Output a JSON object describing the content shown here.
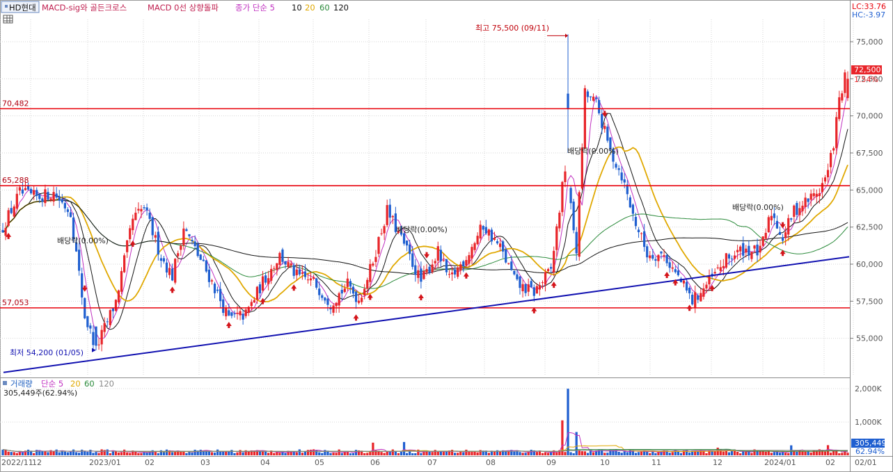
{
  "symbol": "HD현대",
  "colors": {
    "up": "#e8252a",
    "down": "#1f5fd0",
    "ma5": "#c030c0",
    "ma10": "#111111",
    "ma20": "#e0a800",
    "ma60": "#2a8a3a",
    "ma120": "#111111",
    "hline": "#e8000a",
    "trend": "#1010b0",
    "grid": "#d6d6d6"
  },
  "indicators": [
    "MACD-sig와 골든크로스",
    "MACD 0선 상향돌파"
  ],
  "ma_legend": {
    "label": "종가 단순 5",
    "periods": [
      "10",
      "20",
      "60",
      "120"
    ]
  },
  "volume_legend": {
    "label": "거래량",
    "sub": "단순 5",
    "periods": [
      "20",
      "60",
      "120"
    ]
  },
  "lc_hc": {
    "lc": "LC:33.76",
    "hc": "HC:-3.97"
  },
  "last": {
    "price": "72,500",
    "change": "1.54%",
    "volume": "305,449",
    "volume_pct": "62.94%"
  },
  "volume_readout": "305,449주(62.94%)",
  "annotations": {
    "high": "최고 75,500 (09/11)",
    "low": "최저 54,200 (01/05)",
    "dividends": [
      "배당락(0.00%)",
      "배당락(0.00%)",
      "배당락(0.00%)",
      "배당락(0.00%)"
    ]
  },
  "chart_data": {
    "type": "candlestick",
    "y_range": [
      52500,
      76500
    ],
    "price_ticks": [
      {
        "value": 55000,
        "label": "55,000"
      },
      {
        "value": 57500,
        "label": "57,500"
      },
      {
        "value": 60000,
        "label": "60,000"
      },
      {
        "value": 62500,
        "label": "62,500"
      },
      {
        "value": 65000,
        "label": "65,000"
      },
      {
        "value": 67500,
        "label": "67,500"
      },
      {
        "value": 70000,
        "label": "70,000"
      },
      {
        "value": 72500,
        "label": "72,500"
      },
      {
        "value": 75000,
        "label": "75,000"
      }
    ],
    "horizontal_lines": [
      {
        "value": 70482,
        "label": "70,482"
      },
      {
        "value": 65288,
        "label": "65,288"
      },
      {
        "value": 57053,
        "label": "57,053"
      }
    ],
    "trendline": {
      "from": 52700,
      "to": 60500
    },
    "volume_ticks": [
      {
        "value": 1000,
        "label": "1,000K"
      },
      {
        "value": 2000,
        "label": "2,000K"
      }
    ],
    "x_labels": [
      "2022/11",
      "12",
      "2023/01",
      "02",
      "03",
      "04",
      "05",
      "06",
      "07",
      "08",
      "09",
      "10",
      "11",
      "12",
      "2024/01",
      "02",
      "02/01"
    ],
    "price_path": [
      [
        0,
        62500
      ],
      [
        6,
        64800
      ],
      [
        12,
        64500
      ],
      [
        18,
        64800
      ],
      [
        24,
        63500
      ],
      [
        29,
        56500
      ],
      [
        33,
        54300
      ],
      [
        40,
        57500
      ],
      [
        46,
        63000
      ],
      [
        50,
        63800
      ],
      [
        56,
        60500
      ],
      [
        60,
        59200
      ],
      [
        64,
        62500
      ],
      [
        68,
        61000
      ],
      [
        74,
        58800
      ],
      [
        80,
        56300
      ],
      [
        86,
        56600
      ],
      [
        92,
        58800
      ],
      [
        98,
        60600
      ],
      [
        104,
        59200
      ],
      [
        110,
        58800
      ],
      [
        116,
        57400
      ],
      [
        122,
        58600
      ],
      [
        126,
        57600
      ],
      [
        130,
        59600
      ],
      [
        136,
        63600
      ],
      [
        142,
        61300
      ],
      [
        148,
        58800
      ],
      [
        154,
        60800
      ],
      [
        158,
        58900
      ],
      [
        164,
        60500
      ],
      [
        170,
        62600
      ],
      [
        176,
        61100
      ],
      [
        182,
        58600
      ],
      [
        188,
        58100
      ],
      [
        194,
        59600
      ],
      [
        199,
        66500
      ],
      [
        203,
        61000
      ],
      [
        206,
        71500
      ],
      [
        210,
        70800
      ],
      [
        215,
        67600
      ],
      [
        219,
        66000
      ],
      [
        223,
        63300
      ],
      [
        228,
        60700
      ],
      [
        234,
        60600
      ],
      [
        240,
        58800
      ],
      [
        244,
        57500
      ],
      [
        250,
        58800
      ],
      [
        256,
        60300
      ],
      [
        262,
        61000
      ],
      [
        268,
        60800
      ],
      [
        272,
        63500
      ],
      [
        276,
        61800
      ],
      [
        280,
        63600
      ],
      [
        286,
        64500
      ],
      [
        289,
        65000
      ],
      [
        292,
        66200
      ],
      [
        294,
        68200
      ],
      [
        296,
        71000
      ],
      [
        298,
        72500
      ]
    ],
    "volume_spikes": [
      {
        "bar": 131,
        "value": 380
      },
      {
        "bar": 142,
        "value": 400
      },
      {
        "bar": 198,
        "value": 1050
      },
      {
        "bar": 200,
        "value": 2000
      },
      {
        "bar": 203,
        "value": 700
      },
      {
        "bar": 253,
        "value": 230
      },
      {
        "bar": 279,
        "value": 300
      },
      {
        "bar": 292,
        "value": 305
      }
    ]
  }
}
